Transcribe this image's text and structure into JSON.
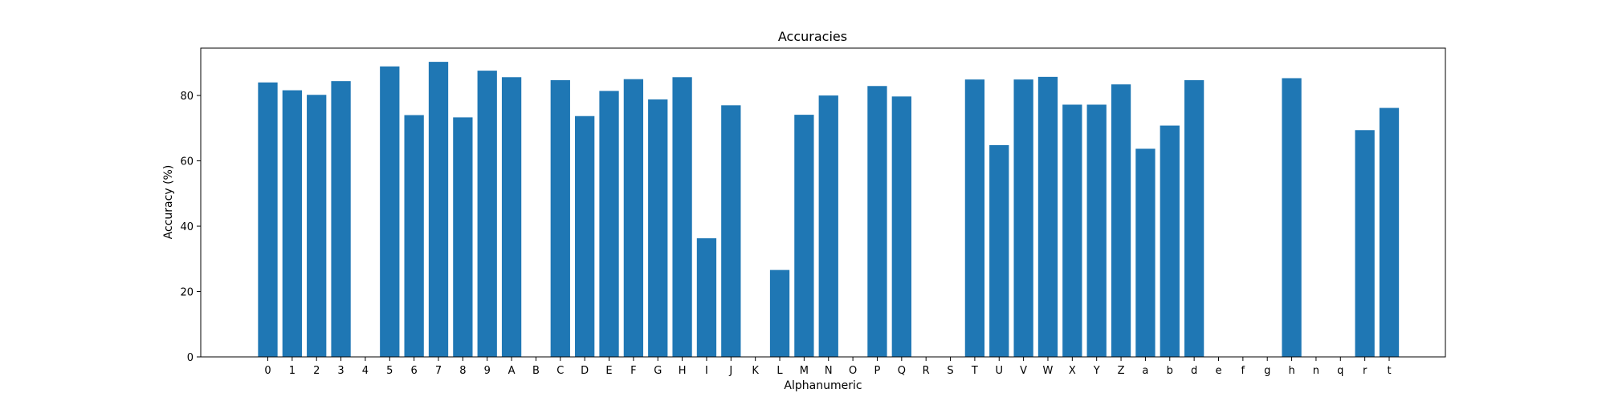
{
  "chart_data": {
    "type": "bar",
    "title": "Accuracies",
    "xlabel": "Alphanumeric",
    "ylabel": "Accuracy (%)",
    "ylim": [
      0,
      94.5
    ],
    "yticks": [
      0,
      20,
      40,
      60,
      80
    ],
    "grid": false,
    "legend": "none",
    "bar_color": "#1f77b4",
    "categories": [
      "0",
      "1",
      "2",
      "3",
      "4",
      "5",
      "6",
      "7",
      "8",
      "9",
      "A",
      "B",
      "C",
      "D",
      "E",
      "F",
      "G",
      "H",
      "I",
      "J",
      "K",
      "L",
      "M",
      "N",
      "O",
      "P",
      "Q",
      "R",
      "S",
      "T",
      "U",
      "V",
      "W",
      "X",
      "Y",
      "Z",
      "a",
      "b",
      "d",
      "e",
      "f",
      "g",
      "h",
      "n",
      "q",
      "r",
      "t"
    ],
    "values": [
      84.0,
      81.6,
      80.2,
      84.4,
      0,
      88.9,
      74.0,
      90.3,
      73.3,
      87.6,
      85.6,
      0,
      84.7,
      73.7,
      81.4,
      85.0,
      78.8,
      85.6,
      36.3,
      77.0,
      0,
      26.6,
      74.1,
      80.0,
      0,
      82.9,
      79.7,
      0,
      0,
      84.9,
      64.8,
      84.9,
      85.7,
      77.2,
      77.2,
      83.4,
      63.7,
      70.8,
      84.7,
      0,
      0,
      0,
      85.3,
      0,
      0,
      69.4,
      76.2
    ]
  }
}
